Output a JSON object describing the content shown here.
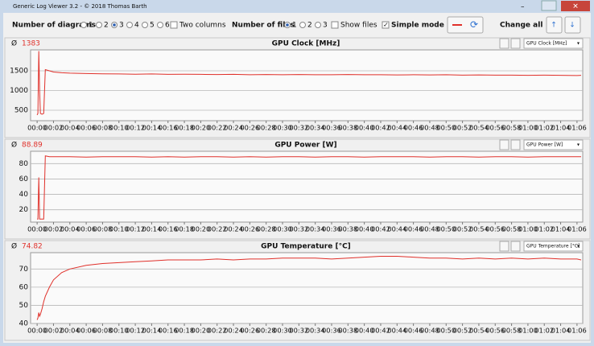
{
  "window": {
    "title": "Generic Log Viewer 3.2 - © 2018 Thomas Barth"
  },
  "toolbar": {
    "diagrams_label": "Number of diagrams",
    "diagram_options": [
      "1",
      "2",
      "3",
      "4",
      "5",
      "6"
    ],
    "two_columns": "Two columns",
    "files_label": "Number of files",
    "file_options": [
      "1",
      "2",
      "3"
    ],
    "show_files": "Show files",
    "simple_mode": "Simple mode",
    "change_all": "Change all"
  },
  "chart_data": [
    {
      "type": "line",
      "title": "GPU Clock [MHz]",
      "average_symbol": "Ø",
      "average": 1383,
      "x": [
        0,
        0.1,
        0.2,
        0.3,
        0.4,
        0.6,
        0.8,
        1,
        1.5,
        2,
        3,
        4,
        6,
        8,
        10,
        12,
        14,
        16,
        18,
        20,
        22,
        24,
        26,
        28,
        30,
        32,
        34,
        36,
        38,
        40,
        42,
        44,
        46,
        48,
        50,
        52,
        54,
        56,
        58,
        60,
        62,
        64,
        66,
        66.5
      ],
      "series": [
        {
          "name": "GPU Clock [MHz]",
          "color": "#e0302a",
          "values": [
            380,
            420,
            2000,
            1000,
            420,
            400,
            420,
            1530,
            1500,
            1470,
            1450,
            1440,
            1430,
            1425,
            1420,
            1415,
            1420,
            1410,
            1415,
            1410,
            1405,
            1410,
            1400,
            1405,
            1400,
            1405,
            1400,
            1400,
            1405,
            1400,
            1400,
            1395,
            1400,
            1395,
            1400,
            1390,
            1395,
            1390,
            1390,
            1385,
            1390,
            1385,
            1380,
            1385
          ]
        }
      ],
      "xlim": [
        -0.8,
        66.7
      ],
      "ylim": [
        235,
        2030
      ],
      "yticks": [
        500,
        1000,
        1500
      ],
      "grid": true,
      "xticks": [
        {
          "value": 0,
          "label": "00:00"
        },
        {
          "value": 2,
          "label": "00:02"
        },
        {
          "value": 4,
          "label": "00:04"
        },
        {
          "value": 6,
          "label": "00:06"
        },
        {
          "value": 8,
          "label": "00:08"
        },
        {
          "value": 10,
          "label": "00:10"
        },
        {
          "value": 12,
          "label": "00:12"
        },
        {
          "value": 14,
          "label": "00:14"
        },
        {
          "value": 16,
          "label": "00:16"
        },
        {
          "value": 18,
          "label": "00:18"
        },
        {
          "value": 20,
          "label": "00:20"
        },
        {
          "value": 22,
          "label": "00:22"
        },
        {
          "value": 24,
          "label": "00:24"
        },
        {
          "value": 26,
          "label": "00:26"
        },
        {
          "value": 28,
          "label": "00:28"
        },
        {
          "value": 30,
          "label": "00:30"
        },
        {
          "value": 32,
          "label": "00:32"
        },
        {
          "value": 34,
          "label": "00:34"
        },
        {
          "value": 36,
          "label": "00:36"
        },
        {
          "value": 38,
          "label": "00:38"
        },
        {
          "value": 40,
          "label": "00:40"
        },
        {
          "value": 42,
          "label": "00:42"
        },
        {
          "value": 44,
          "label": "00:44"
        },
        {
          "value": 46,
          "label": "00:46"
        },
        {
          "value": 48,
          "label": "00:48"
        },
        {
          "value": 50,
          "label": "00:50"
        },
        {
          "value": 52,
          "label": "00:52"
        },
        {
          "value": 54,
          "label": "00:54"
        },
        {
          "value": 56,
          "label": "00:56"
        },
        {
          "value": 58,
          "label": "00:58"
        },
        {
          "value": 60,
          "label": "01:00"
        },
        {
          "value": 62,
          "label": "01:02"
        },
        {
          "value": 64,
          "label": "01:04"
        },
        {
          "value": 66,
          "label": "01:06"
        }
      ]
    },
    {
      "type": "line",
      "title": "GPU Power [W]",
      "average_symbol": "Ø",
      "average": 88.89,
      "x": [
        0,
        0.1,
        0.2,
        0.3,
        0.4,
        0.6,
        0.8,
        1,
        1.5,
        2,
        3,
        4,
        6,
        8,
        10,
        12,
        14,
        16,
        18,
        20,
        22,
        24,
        26,
        28,
        30,
        32,
        34,
        36,
        38,
        40,
        42,
        44,
        46,
        48,
        50,
        52,
        54,
        56,
        58,
        60,
        62,
        64,
        66,
        66.5
      ],
      "series": [
        {
          "name": "GPU Power [W]",
          "color": "#e0302a",
          "values": [
            8,
            8,
            62,
            8,
            8,
            8,
            8,
            90,
            89,
            89,
            89,
            89,
            88.5,
            89,
            89,
            89,
            88.5,
            89,
            88.5,
            89,
            89,
            88.5,
            89,
            88.5,
            89,
            89,
            88.5,
            89,
            89,
            88.5,
            89,
            89,
            89,
            88.5,
            89,
            89,
            88.5,
            89,
            89,
            88.5,
            89,
            89,
            89,
            89
          ]
        }
      ],
      "xlim": [
        -0.8,
        66.7
      ],
      "ylim": [
        4,
        96
      ],
      "yticks": [
        20,
        40,
        60,
        80
      ],
      "grid": true,
      "xticks": [
        {
          "value": 0,
          "label": "00:00"
        },
        {
          "value": 2,
          "label": "00:02"
        },
        {
          "value": 4,
          "label": "00:04"
        },
        {
          "value": 6,
          "label": "00:06"
        },
        {
          "value": 8,
          "label": "00:08"
        },
        {
          "value": 10,
          "label": "00:10"
        },
        {
          "value": 12,
          "label": "00:12"
        },
        {
          "value": 14,
          "label": "00:14"
        },
        {
          "value": 16,
          "label": "00:16"
        },
        {
          "value": 18,
          "label": "00:18"
        },
        {
          "value": 20,
          "label": "00:20"
        },
        {
          "value": 22,
          "label": "00:22"
        },
        {
          "value": 24,
          "label": "00:24"
        },
        {
          "value": 26,
          "label": "00:26"
        },
        {
          "value": 28,
          "label": "00:28"
        },
        {
          "value": 30,
          "label": "00:30"
        },
        {
          "value": 32,
          "label": "00:32"
        },
        {
          "value": 34,
          "label": "00:34"
        },
        {
          "value": 36,
          "label": "00:36"
        },
        {
          "value": 38,
          "label": "00:38"
        },
        {
          "value": 40,
          "label": "00:40"
        },
        {
          "value": 42,
          "label": "00:42"
        },
        {
          "value": 44,
          "label": "00:44"
        },
        {
          "value": 46,
          "label": "00:46"
        },
        {
          "value": 48,
          "label": "00:48"
        },
        {
          "value": 50,
          "label": "00:50"
        },
        {
          "value": 52,
          "label": "00:52"
        },
        {
          "value": 54,
          "label": "00:54"
        },
        {
          "value": 56,
          "label": "00:56"
        },
        {
          "value": 58,
          "label": "00:58"
        },
        {
          "value": 60,
          "label": "01:00"
        },
        {
          "value": 62,
          "label": "01:02"
        },
        {
          "value": 64,
          "label": "01:04"
        },
        {
          "value": 66,
          "label": "01:06"
        }
      ]
    },
    {
      "type": "line",
      "title": "GPU Temperature [°C]",
      "average_symbol": "Ø",
      "average": 74.82,
      "x": [
        0,
        0.1,
        0.2,
        0.3,
        0.4,
        0.6,
        0.8,
        1,
        1.5,
        2,
        3,
        4,
        6,
        8,
        10,
        12,
        14,
        16,
        18,
        20,
        22,
        24,
        26,
        28,
        30,
        32,
        34,
        36,
        38,
        40,
        42,
        44,
        46,
        48,
        50,
        52,
        54,
        56,
        58,
        60,
        62,
        64,
        66,
        66.5
      ],
      "series": [
        {
          "name": "GPU Temperature [°C]",
          "color": "#e0302a",
          "values": [
            42,
            43,
            46,
            44,
            45,
            48,
            52,
            55,
            60,
            64,
            68,
            70,
            72,
            73,
            73.5,
            74,
            74.5,
            75,
            75,
            75,
            75.5,
            75,
            75.5,
            75.5,
            76,
            76,
            76,
            75.5,
            76,
            76.5,
            77,
            77,
            76.5,
            76,
            76,
            75.5,
            76,
            75.5,
            76,
            75.5,
            76,
            75.5,
            75.5,
            75
          ]
        }
      ],
      "xlim": [
        -0.8,
        66.7
      ],
      "ylim": [
        40,
        79
      ],
      "yticks": [
        40,
        50,
        60,
        70
      ],
      "grid": true,
      "xticks": [
        {
          "value": 0,
          "label": "00:00"
        },
        {
          "value": 2,
          "label": "00:02"
        },
        {
          "value": 4,
          "label": "00:04"
        },
        {
          "value": 6,
          "label": "00:06"
        },
        {
          "value": 8,
          "label": "00:08"
        },
        {
          "value": 10,
          "label": "00:10"
        },
        {
          "value": 12,
          "label": "00:12"
        },
        {
          "value": 14,
          "label": "00:14"
        },
        {
          "value": 16,
          "label": "00:16"
        },
        {
          "value": 18,
          "label": "00:18"
        },
        {
          "value": 20,
          "label": "00:20"
        },
        {
          "value": 22,
          "label": "00:22"
        },
        {
          "value": 24,
          "label": "00:24"
        },
        {
          "value": 26,
          "label": "00:26"
        },
        {
          "value": 28,
          "label": "00:28"
        },
        {
          "value": 30,
          "label": "00:30"
        },
        {
          "value": 32,
          "label": "00:32"
        },
        {
          "value": 34,
          "label": "00:34"
        },
        {
          "value": 36,
          "label": "00:36"
        },
        {
          "value": 38,
          "label": "00:38"
        },
        {
          "value": 40,
          "label": "00:40"
        },
        {
          "value": 42,
          "label": "00:42"
        },
        {
          "value": 44,
          "label": "00:44"
        },
        {
          "value": 46,
          "label": "00:46"
        },
        {
          "value": 48,
          "label": "00:48"
        },
        {
          "value": 50,
          "label": "00:50"
        },
        {
          "value": 52,
          "label": "00:52"
        },
        {
          "value": 54,
          "label": "00:54"
        },
        {
          "value": 56,
          "label": "00:56"
        },
        {
          "value": 58,
          "label": "00:58"
        },
        {
          "value": 60,
          "label": "01:00"
        },
        {
          "value": 62,
          "label": "01:02"
        },
        {
          "value": 64,
          "label": "01:04"
        },
        {
          "value": 66,
          "label": "01:06"
        }
      ]
    }
  ]
}
